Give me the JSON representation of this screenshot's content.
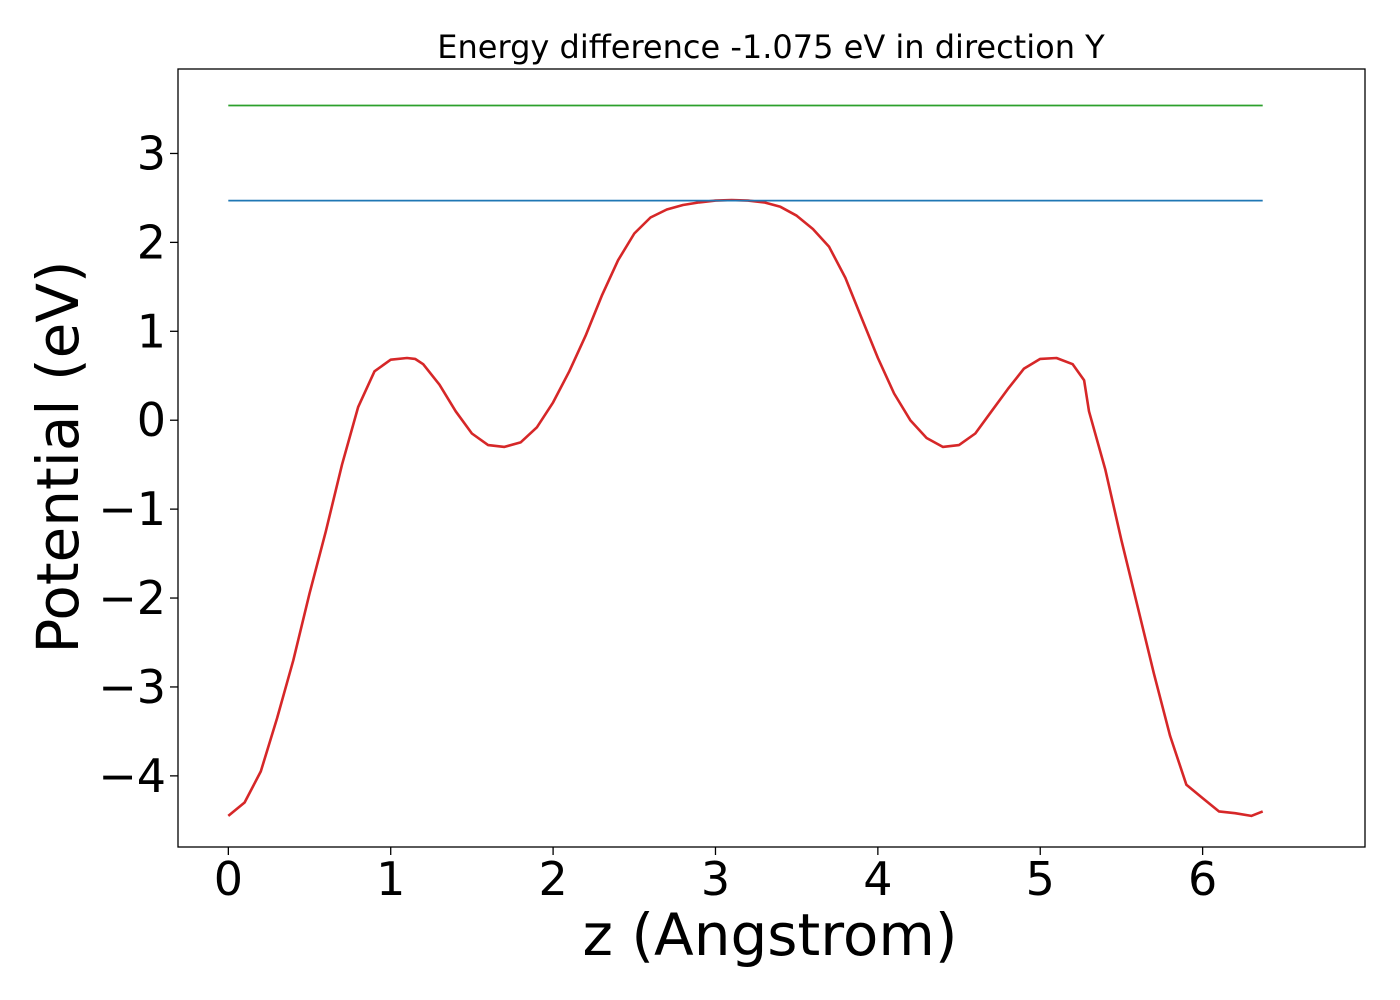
{
  "chart_data": {
    "type": "line",
    "title": "Energy difference -1.075 eV in direction Y",
    "xlabel": "z (Angstrom)",
    "ylabel": "Potential (eV)",
    "xlim": [
      -0.31,
      7.0
    ],
    "ylim": [
      -4.8,
      3.95
    ],
    "x_ticks": [
      0,
      1,
      2,
      3,
      4,
      5,
      6
    ],
    "x_tick_labels": [
      "0",
      "1",
      "2",
      "3",
      "4",
      "5",
      "6"
    ],
    "y_ticks": [
      3,
      2,
      1,
      0,
      -1,
      -2,
      -3,
      -4
    ],
    "y_tick_labels": [
      "3",
      "2",
      "1",
      "0",
      "−1",
      "−2",
      "−3",
      "−4"
    ],
    "grid": false,
    "series": [
      {
        "color": "#d62728",
        "x": [
          0,
          0.1,
          0.2,
          0.3,
          0.4,
          0.5,
          0.6,
          0.7,
          0.8,
          0.9,
          1.0,
          1.1,
          1.15,
          1.2,
          1.3,
          1.4,
          1.5,
          1.6,
          1.7,
          1.8,
          1.9,
          2.0,
          2.1,
          2.2,
          2.3,
          2.4,
          2.5,
          2.6,
          2.7,
          2.8,
          2.9,
          3.0,
          3.1,
          3.2,
          3.3,
          3.4,
          3.5,
          3.6,
          3.7,
          3.8,
          3.9,
          4.0,
          4.1,
          4.2,
          4.3,
          4.4,
          4.5,
          4.6,
          4.7,
          4.8,
          4.9,
          5.0,
          5.1,
          5.2,
          5.27,
          5.3,
          5.4,
          5.5,
          5.6,
          5.7,
          5.8,
          5.9,
          6.0,
          6.1,
          6.2,
          6.3,
          6.37
        ],
        "y": [
          -4.45,
          -4.3,
          -3.95,
          -3.35,
          -2.7,
          -1.95,
          -1.25,
          -0.5,
          0.15,
          0.55,
          0.68,
          0.7,
          0.69,
          0.63,
          0.4,
          0.1,
          -0.15,
          -0.28,
          -0.3,
          -0.25,
          -0.08,
          0.2,
          0.55,
          0.95,
          1.4,
          1.8,
          2.1,
          2.28,
          2.37,
          2.42,
          2.45,
          2.47,
          2.475,
          2.47,
          2.45,
          2.4,
          2.3,
          2.15,
          1.95,
          1.6,
          1.15,
          0.7,
          0.3,
          0.0,
          -0.2,
          -0.3,
          -0.28,
          -0.15,
          0.1,
          0.35,
          0.58,
          0.69,
          0.7,
          0.63,
          0.45,
          0.1,
          -0.55,
          -1.35,
          -2.1,
          -2.85,
          -3.55,
          -4.1,
          -4.25,
          -4.4,
          -4.42,
          -4.45,
          -4.4
        ]
      },
      {
        "color": "#1f77b4",
        "x": [
          0,
          6.37
        ],
        "y": [
          2.47,
          2.47
        ]
      },
      {
        "color": "#2ca02c",
        "x": [
          0,
          6.37
        ],
        "y": [
          3.54,
          3.54
        ]
      }
    ]
  }
}
